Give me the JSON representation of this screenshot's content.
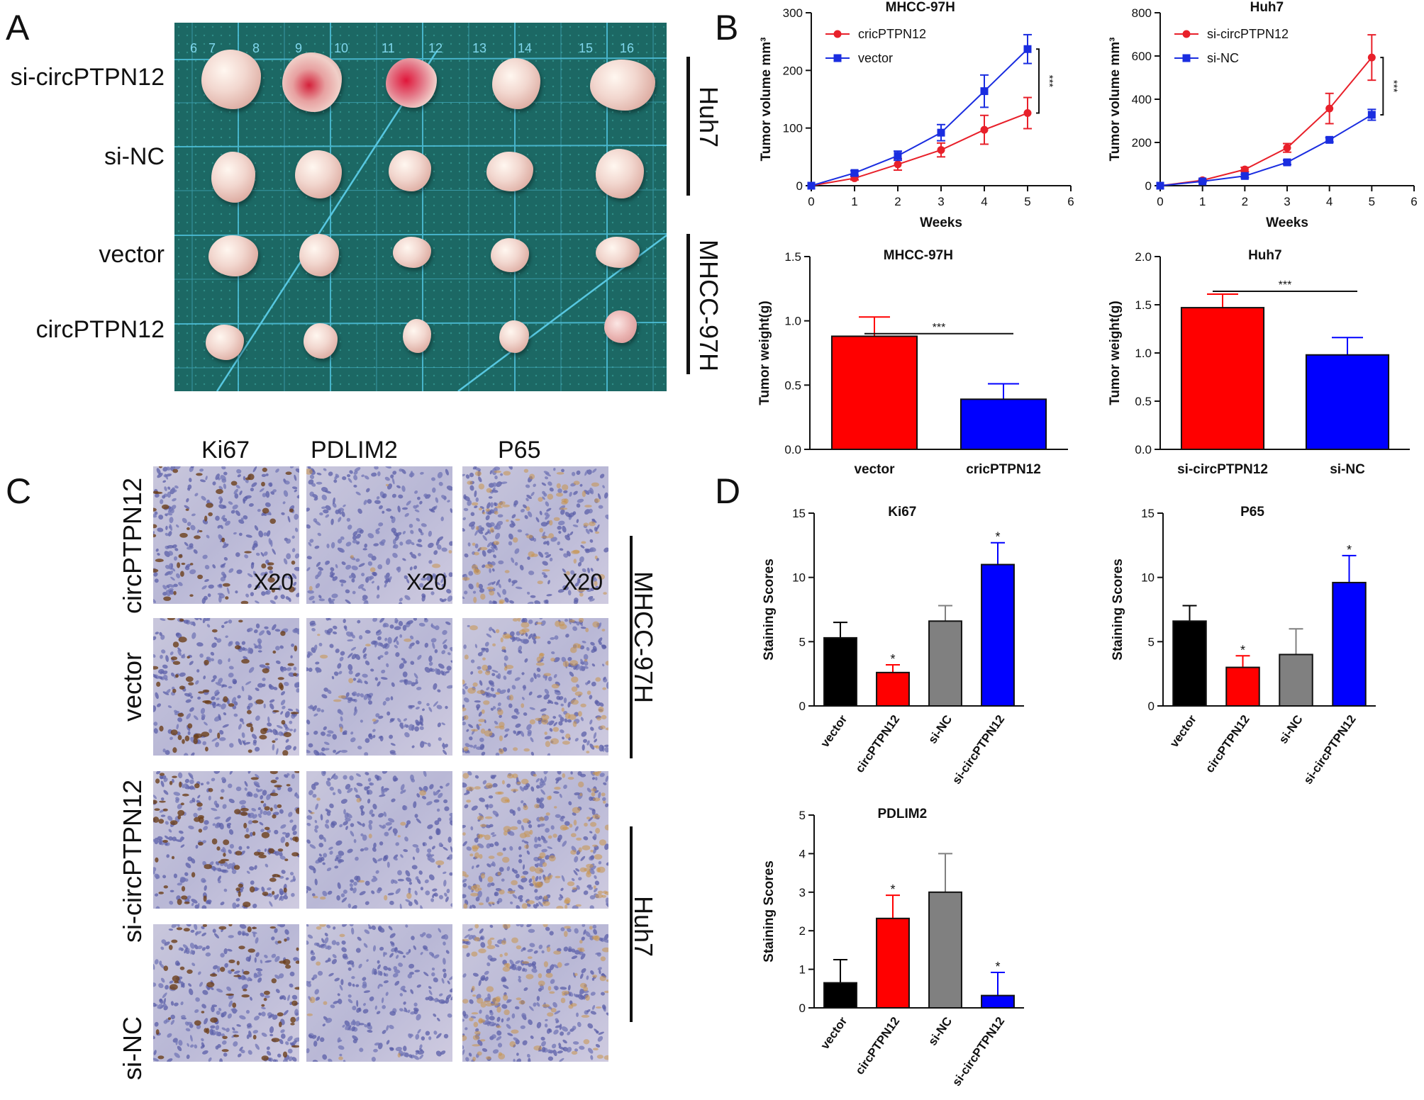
{
  "panels": {
    "a": "A",
    "b": "B",
    "c": "C",
    "d": "D"
  },
  "panelA": {
    "row_labels": [
      "si-circPTPN12",
      "si-NC",
      "vector",
      "circPTPN12"
    ],
    "group_labels": [
      "Huh7",
      "MHCC-97H"
    ],
    "ruler_numbers": [
      "6",
      "7",
      "8",
      "9",
      "10",
      "11",
      "12",
      "13",
      "14",
      "15",
      "16"
    ],
    "colors": {
      "mat": "#1f6f6c",
      "grid": "#57c7e0"
    }
  },
  "panelC": {
    "columns": [
      "Ki67",
      "PDLIM2",
      "P65"
    ],
    "row_labels": [
      "circPTPN12",
      "vector",
      "si-circPTPN12",
      "si-NC"
    ],
    "group_labels": [
      "MHCC-97H",
      "Huh7"
    ],
    "magnification": "X20"
  },
  "chart_data": [
    {
      "id": "B1",
      "type": "line",
      "title": "MHCC-97H",
      "xlabel": "Weeks",
      "ylabel": "Tumor volume mm³",
      "xlim": [
        0,
        6
      ],
      "ylim": [
        0,
        300
      ],
      "xticks": [
        "0",
        "1",
        "2",
        "3",
        "4",
        "5",
        "6"
      ],
      "yticks": [
        "0",
        "100",
        "200",
        "300"
      ],
      "x": [
        0,
        1,
        2,
        3,
        4,
        5
      ],
      "series": [
        {
          "name": "cricPTPN12",
          "color": "#e8202a",
          "marker": "circle",
          "values": [
            0,
            13,
            37,
            62,
            97,
            126
          ],
          "errors": [
            0,
            3,
            10,
            12,
            25,
            27
          ]
        },
        {
          "name": "vector",
          "color": "#1a2de0",
          "marker": "square",
          "values": [
            0,
            22,
            52,
            92,
            164,
            237
          ],
          "errors": [
            0,
            4,
            8,
            14,
            28,
            25
          ]
        }
      ],
      "annotation": "***",
      "legend": "top-left"
    },
    {
      "id": "B2",
      "type": "line",
      "title": "Huh7",
      "xlabel": "Weeks",
      "ylabel": "Tumor volume mm³",
      "xlim": [
        0,
        6
      ],
      "ylim": [
        0,
        800
      ],
      "xticks": [
        "0",
        "1",
        "2",
        "3",
        "4",
        "5",
        "6"
      ],
      "yticks": [
        "0",
        "200",
        "400",
        "600",
        "800"
      ],
      "x": [
        0,
        1,
        2,
        3,
        4,
        5
      ],
      "series": [
        {
          "name": "si-circPTPN12",
          "color": "#e8202a",
          "marker": "circle",
          "values": [
            0,
            25,
            75,
            175,
            357,
            593
          ],
          "errors": [
            0,
            5,
            10,
            20,
            70,
            105
          ]
        },
        {
          "name": "si-NC",
          "color": "#1a2de0",
          "marker": "square",
          "values": [
            0,
            20,
            45,
            108,
            212,
            328
          ],
          "errors": [
            0,
            4,
            8,
            10,
            10,
            25
          ]
        }
      ],
      "annotation": "***",
      "legend": "top-left"
    },
    {
      "id": "B3",
      "type": "bar",
      "title": "MHCC-97H",
      "ylabel": "Tumor weight(g)",
      "ylim": [
        0,
        1.5
      ],
      "yticks": [
        "0.0",
        "0.5",
        "1.0",
        "1.5"
      ],
      "categories": [
        "vector",
        "cricPTPN12"
      ],
      "values": [
        0.88,
        0.39
      ],
      "errors": [
        0.15,
        0.12
      ],
      "colors": [
        "#ff0000",
        "#0000ff"
      ],
      "annotation": "***"
    },
    {
      "id": "B4",
      "type": "bar",
      "title": "Huh7",
      "ylabel": "Tumor weight(g)",
      "ylim": [
        0,
        2.0
      ],
      "yticks": [
        "0.0",
        "0.5",
        "1.0",
        "1.5",
        "2.0"
      ],
      "categories": [
        "si-circPTPN12",
        "si-NC"
      ],
      "values": [
        1.47,
        0.98
      ],
      "errors": [
        0.14,
        0.18
      ],
      "colors": [
        "#ff0000",
        "#0000ff"
      ],
      "annotation": "***"
    },
    {
      "id": "D1",
      "type": "bar",
      "title": "Ki67",
      "ylabel": "Staining Scores",
      "ylim": [
        0,
        15
      ],
      "yticks": [
        "0",
        "5",
        "10",
        "15"
      ],
      "categories": [
        "vector",
        "circPTPN12",
        "si-NC",
        "si-circPTPN12"
      ],
      "values": [
        5.3,
        2.6,
        6.6,
        11.0
      ],
      "errors": [
        1.2,
        0.6,
        1.2,
        1.7
      ],
      "colors": [
        "#000000",
        "#ff0000",
        "#808080",
        "#0000ff"
      ],
      "stars": [
        "",
        "*",
        "",
        "*"
      ]
    },
    {
      "id": "D2",
      "type": "bar",
      "title": "P65",
      "ylabel": "Staining Scores",
      "ylim": [
        0,
        15
      ],
      "yticks": [
        "0",
        "5",
        "10",
        "15"
      ],
      "categories": [
        "vector",
        "circPTPN12",
        "si-NC",
        "si-circPTPN12"
      ],
      "values": [
        6.6,
        3.0,
        4.0,
        9.6
      ],
      "errors": [
        1.2,
        0.9,
        2.0,
        2.1
      ],
      "colors": [
        "#000000",
        "#ff0000",
        "#808080",
        "#0000ff"
      ],
      "stars": [
        "",
        "*",
        "",
        "*"
      ]
    },
    {
      "id": "D3",
      "type": "bar",
      "title": "PDLIM2",
      "ylabel": "Staining Scores",
      "ylim": [
        0,
        5
      ],
      "yticks": [
        "0",
        "1",
        "2",
        "3",
        "4",
        "5"
      ],
      "categories": [
        "vector",
        "circPTPN12",
        "si-NC",
        "si-circPTPN12"
      ],
      "values": [
        0.65,
        2.32,
        3.0,
        0.32
      ],
      "errors": [
        0.6,
        0.6,
        1.0,
        0.6
      ],
      "colors": [
        "#000000",
        "#ff0000",
        "#808080",
        "#0000ff"
      ],
      "stars": [
        "",
        "*",
        "",
        "*"
      ]
    }
  ]
}
